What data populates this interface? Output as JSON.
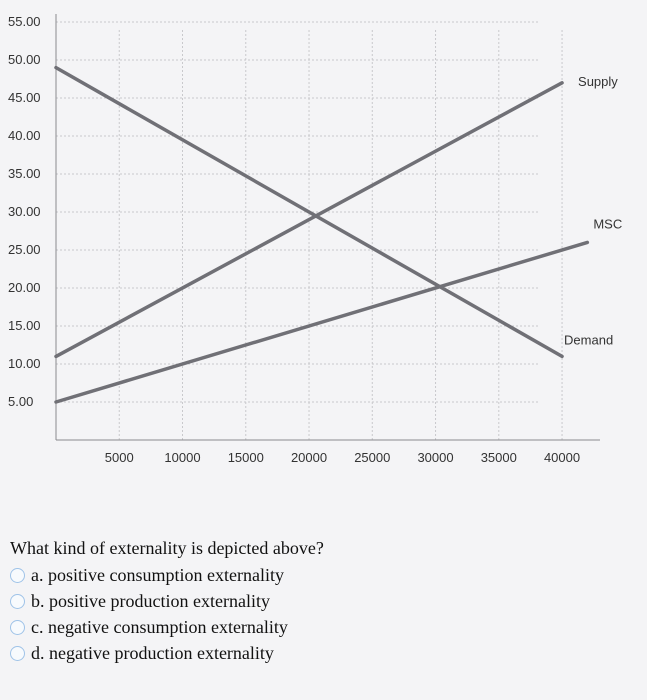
{
  "chart_data": {
    "type": "line",
    "title": "",
    "xlabel": "",
    "ylabel": "",
    "xlim": [
      0,
      43000
    ],
    "ylim": [
      0,
      55
    ],
    "grid": true,
    "x_ticks": [
      "5000",
      "10000",
      "15000",
      "20000",
      "25000",
      "30000",
      "35000",
      "40000"
    ],
    "y_ticks": [
      "55.00",
      "50.00",
      "45.00",
      "40.00",
      "35.00",
      "30.00",
      "25.00",
      "20.00",
      "15.00",
      "10.00",
      "5.00"
    ],
    "series": [
      {
        "name": "Supply",
        "x": [
          0,
          40000
        ],
        "y": [
          11,
          47
        ]
      },
      {
        "name": "Demand",
        "x": [
          0,
          40000
        ],
        "y": [
          49,
          11
        ]
      },
      {
        "name": "MSC",
        "x": [
          0,
          42000
        ],
        "y": [
          5,
          26
        ]
      }
    ],
    "colors": {
      "lines": "#707076",
      "grid": "#c9c9cc",
      "axis": "#8a8a8e"
    }
  },
  "question": {
    "text": "What kind of externality is depicted above?",
    "options": [
      "a. positive consumption externality",
      "b. positive production externality",
      "c. negative consumption externality",
      "d. negative production externality"
    ]
  }
}
